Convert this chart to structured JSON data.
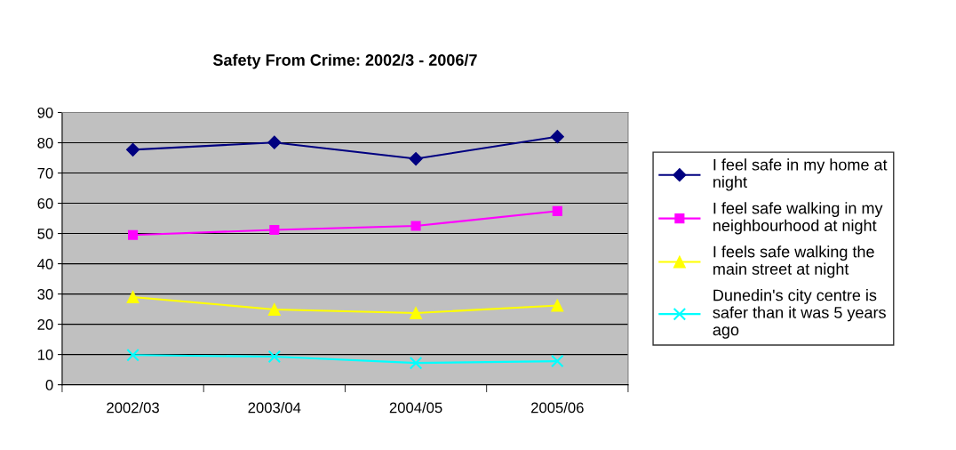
{
  "chart_data": {
    "type": "line",
    "title": "Safety From Crime: 2002/3 - 2006/7",
    "categories": [
      "2002/03",
      "2003/04",
      "2004/05",
      "2005/06"
    ],
    "series": [
      {
        "name": "I feel safe in my home at night",
        "color": "#000080",
        "marker": "diamond",
        "values": [
          77.7,
          80.1,
          74.7,
          82
        ]
      },
      {
        "name": "I feel safe walking in my neighbourhood at night",
        "color": "#ff00ff",
        "marker": "square",
        "values": [
          49.5,
          51.2,
          52.5,
          57.4
        ]
      },
      {
        "name": "I feels safe walking the main street at night",
        "color": "#ffff00",
        "marker": "triangle",
        "values": [
          29,
          24.9,
          23.7,
          26.2
        ]
      },
      {
        "name": "Dunedin's city centre is safer than it was 5 years ago",
        "color": "#00ffff",
        "marker": "cross",
        "values": [
          9.8,
          9.3,
          7.2,
          7.8
        ]
      }
    ],
    "ylim": [
      0,
      90
    ],
    "yticks": [
      0,
      10,
      20,
      30,
      40,
      50,
      60,
      70,
      80,
      90
    ],
    "grid": "y",
    "legend": "right"
  }
}
